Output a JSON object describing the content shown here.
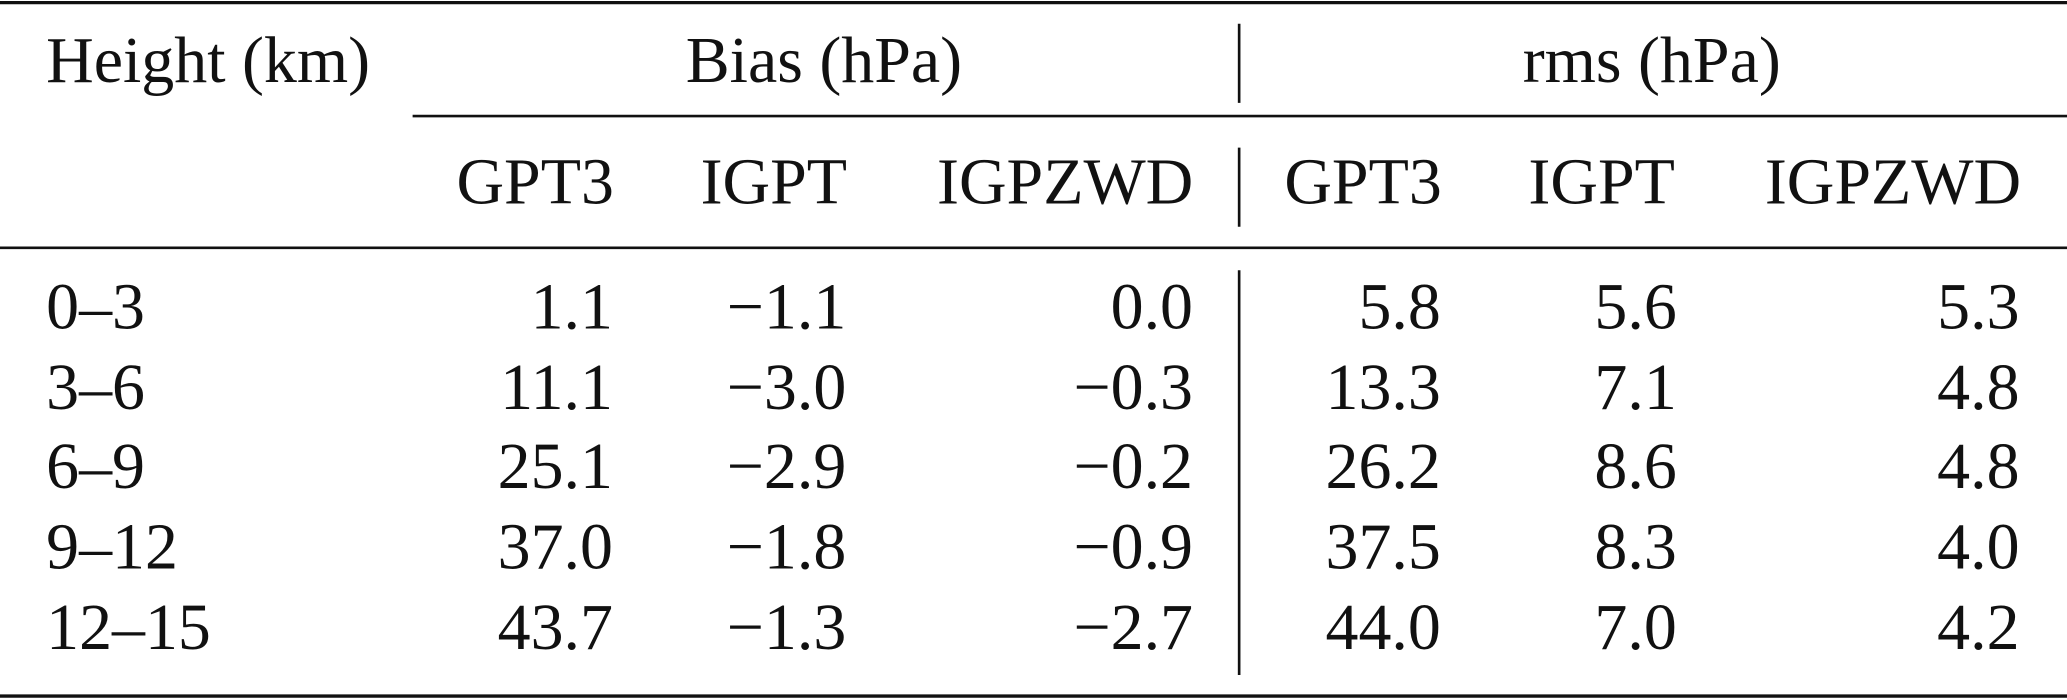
{
  "table": {
    "header": {
      "height": "Height (km)",
      "groups": [
        "Bias (hPa)",
        "rms (hPa)"
      ],
      "columns": [
        "GPT3",
        "IGPT",
        "IGPZWD",
        "GPT3",
        "IGPT",
        "IGPZWD"
      ]
    },
    "rows": [
      [
        "0–3",
        "1.1",
        "−1.1",
        "0.0",
        "5.8",
        "5.6",
        "5.3"
      ],
      [
        "3–6",
        "11.1",
        "−3.0",
        "−0.3",
        "13.3",
        "7.1",
        "4.8"
      ],
      [
        "6–9",
        "25.1",
        "−2.9",
        "−0.2",
        "26.2",
        "8.6",
        "4.8"
      ],
      [
        "9–12",
        "37.0",
        "−1.8",
        "−0.9",
        "37.5",
        "8.3",
        "4.0"
      ],
      [
        "12–15",
        "43.7",
        "−1.3",
        "−2.7",
        "44.0",
        "7.0",
        "4.2"
      ]
    ]
  }
}
